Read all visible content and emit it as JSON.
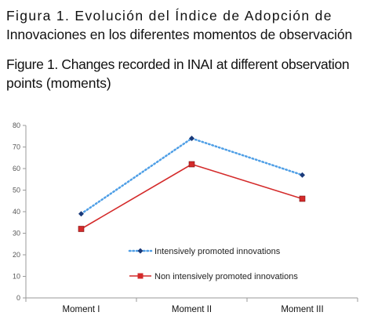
{
  "caption_es": {
    "line1": "Figura 1. Evolución del Índice de Adopción de",
    "line2": "Innovaciones en los diferentes momentos de observación"
  },
  "caption_en": {
    "line1": "Figure 1. Changes recorded in INAI at different observation",
    "line2": "points (moments)"
  },
  "chart_data": {
    "type": "line",
    "categories": [
      "Moment I",
      "Moment II",
      "Moment III"
    ],
    "series": [
      {
        "name": "Intensively promoted innovations",
        "values": [
          39,
          74,
          57
        ],
        "color": "#4f9fe6",
        "style": "dotted"
      },
      {
        "name": "Non intensively promoted innovations",
        "values": [
          32,
          62,
          46
        ],
        "color": "#d42a2a",
        "style": "solid"
      }
    ],
    "ylim": [
      0,
      80
    ],
    "yticks": [
      "0",
      "10",
      "20",
      "30",
      "40",
      "50",
      "60",
      "70",
      "80"
    ],
    "legend_position": "lower-right inside plot",
    "grid": false
  }
}
